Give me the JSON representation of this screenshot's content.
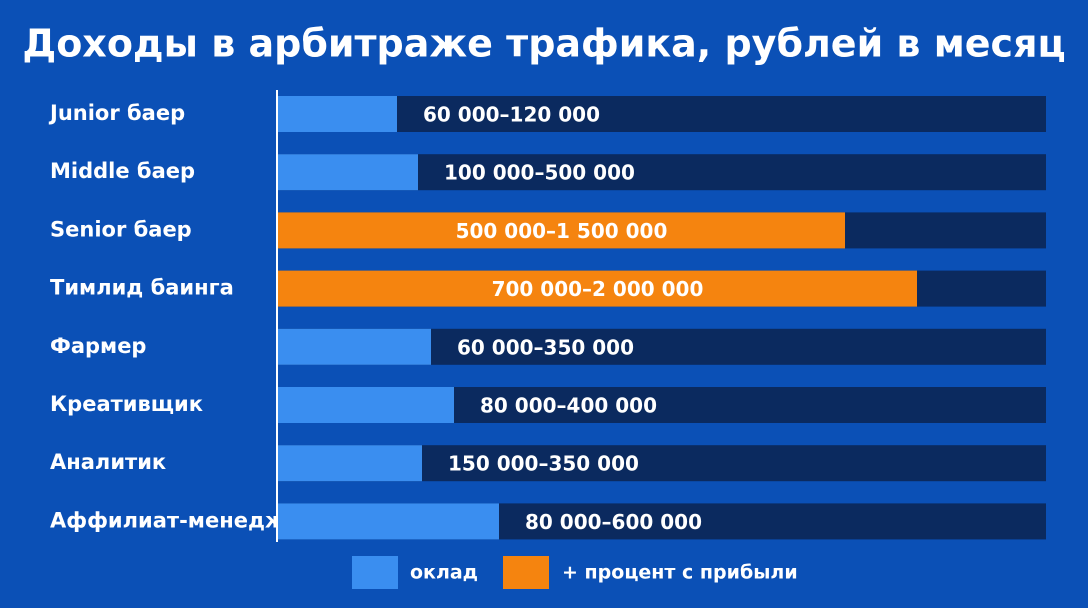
{
  "title": "Доходы в арбитраже трафика, рублей в месяц",
  "rows": [
    {
      "label": "Junior баер",
      "range": "60 000–120 000"
    },
    {
      "label": "Middle баер",
      "range": "100 000–500 000"
    },
    {
      "label": "Senior баер",
      "range": "500 000–1 500 000"
    },
    {
      "label": "Тимлид баинга",
      "range": "700 000–2 000 000"
    },
    {
      "label": "Фармер",
      "range": "60 000–350 000"
    },
    {
      "label": "Креативщик",
      "range": "80 000–400 000"
    },
    {
      "label": "Аналитик",
      "range": "150 000–350 000"
    },
    {
      "label": "Аффилиат-менеджер",
      "range": "80 000–600 000"
    }
  ],
  "legend": [
    "оклад",
    "+ процент с прибыли"
  ]
}
